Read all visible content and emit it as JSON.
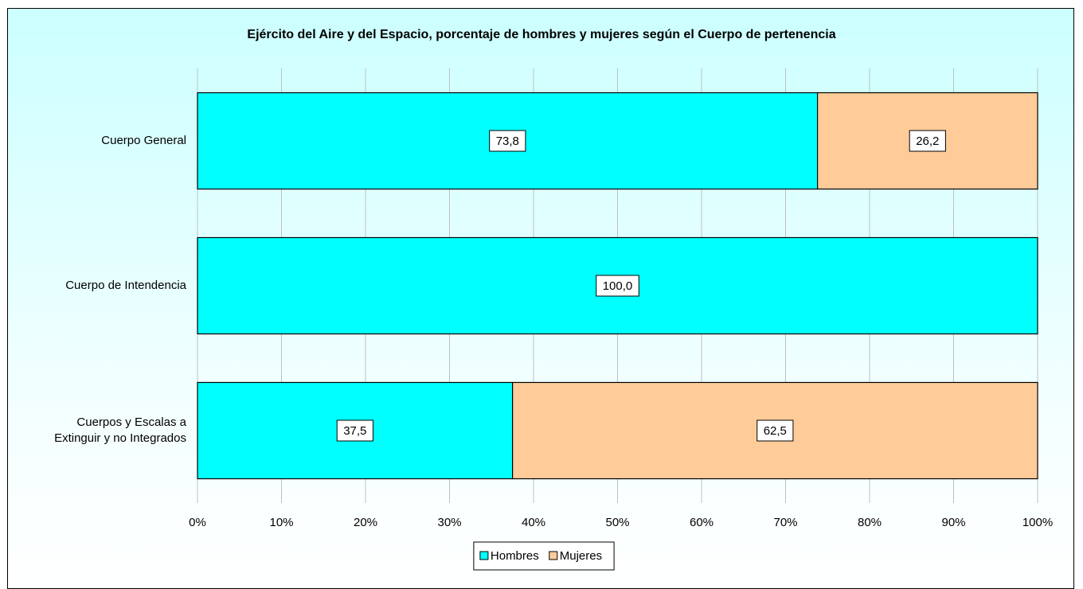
{
  "chart_data": {
    "type": "stacked_barh",
    "title": "Ejército del Aire y del Espacio, porcentaje de hombres y mujeres según el Cuerpo de pertenencia",
    "categories": [
      "Cuerpo General",
      "Cuerpo de Intendencia",
      "Cuerpos y Escalas a Extinguir y no Integrados"
    ],
    "series": [
      {
        "name": "Hombres",
        "color": "#00ffff",
        "values": [
          73.8,
          100.0,
          37.5
        ],
        "value_labels": [
          "73,8",
          "100,0",
          "37,5"
        ]
      },
      {
        "name": "Mujeres",
        "color": "#ffcc99",
        "values": [
          26.2,
          0,
          62.5
        ],
        "value_labels": [
          "26,2",
          null,
          "62,5"
        ]
      }
    ],
    "xlim": [
      0,
      100
    ],
    "xticks": [
      {
        "value": 0,
        "label": "0%"
      },
      {
        "value": 10,
        "label": "10%"
      },
      {
        "value": 20,
        "label": "20%"
      },
      {
        "value": 30,
        "label": "30%"
      },
      {
        "value": 40,
        "label": "40%"
      },
      {
        "value": 50,
        "label": "50%"
      },
      {
        "value": 60,
        "label": "60%"
      },
      {
        "value": 70,
        "label": "70%"
      },
      {
        "value": 80,
        "label": "80%"
      },
      {
        "value": 90,
        "label": "90%"
      },
      {
        "value": 100,
        "label": "100%"
      }
    ],
    "grid": true,
    "legend": "bottom"
  }
}
